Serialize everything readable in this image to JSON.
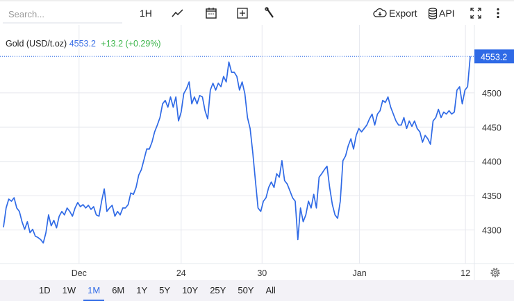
{
  "toolbar": {
    "search_placeholder": "Search...",
    "interval": "1H",
    "export_label": "Export",
    "api_label": "API",
    "icons": [
      "line-chart-icon",
      "calendar-icon",
      "add-indicator-icon",
      "wrench-icon",
      "cloud-download-icon",
      "database-icon",
      "fullscreen-icon",
      "more-vertical-icon"
    ]
  },
  "legend": {
    "name": "Gold (USD/t.oz)",
    "price": "4553.2",
    "change": "+13.2 (+0.29%)"
  },
  "ranges": [
    "1D",
    "1W",
    "1M",
    "6M",
    "1Y",
    "5Y",
    "10Y",
    "25Y",
    "50Y",
    "All"
  ],
  "active_range": "1M",
  "colors": {
    "line": "#2f6ae6",
    "change_positive": "#3bb54a",
    "grid": "#e6e8ee"
  },
  "chart_data": {
    "type": "line",
    "title": "",
    "ylim": [
      4251,
      4597
    ],
    "yticks": [
      4300,
      4350,
      4400,
      4450,
      4500
    ],
    "ytick_labels": [
      "4300",
      "4350",
      "4400",
      "4450",
      "4500"
    ],
    "last_price_label": "4553.2",
    "last_price": 4553.2,
    "xticks": [
      {
        "index": 28.5,
        "label": "Dec"
      },
      {
        "index": 67,
        "label": "24"
      },
      {
        "index": 97.5,
        "label": "30"
      },
      {
        "index": 134.25,
        "label": "Jan"
      },
      {
        "index": 174.2,
        "label": "12"
      }
    ],
    "grid": true,
    "values": [
      4304,
      4332,
      4345,
      4342,
      4347,
      4332,
      4327,
      4312,
      4301,
      4312,
      4296,
      4301,
      4291,
      4289,
      4286,
      4281,
      4296,
      4322,
      4306,
      4314,
      4303,
      4320,
      4327,
      4322,
      4332,
      4327,
      4320,
      4332,
      4340,
      4334,
      4337,
      4332,
      4336,
      4330,
      4334,
      4322,
      4320,
      4342,
      4360,
      4327,
      4332,
      4336,
      4320,
      4327,
      4322,
      4332,
      4332,
      4337,
      4354,
      4352,
      4362,
      4380,
      4388,
      4403,
      4418,
      4418,
      4428,
      4443,
      4453,
      4464,
      4484,
      4489,
      4479,
      4494,
      4479,
      4494,
      4459,
      4472,
      4499,
      4506,
      4516,
      4484,
      4494,
      4484,
      4496,
      4494,
      4474,
      4462,
      4504,
      4514,
      4504,
      4514,
      4509,
      4524,
      4516,
      4545,
      4530,
      4530,
      4524,
      4504,
      4516,
      4499,
      4464,
      4448,
      4413,
      4372,
      4332,
      4327,
      4342,
      4347,
      4362,
      4370,
      4362,
      4382,
      4377,
      4401,
      4372,
      4367,
      4357,
      4347,
      4342,
      4286,
      4332,
      4312,
      4322,
      4342,
      4332,
      4352,
      4332,
      4377,
      4382,
      4388,
      4393,
      4362,
      4337,
      4322,
      4317,
      4342,
      4401,
      4408,
      4423,
      4433,
      4418,
      4438,
      4448,
      4443,
      4448,
      4453,
      4462,
      4469,
      4453,
      4469,
      4474,
      4489,
      4486,
      4494,
      4479,
      4469,
      4459,
      4453,
      4453,
      4464,
      4448,
      4459,
      4451,
      4459,
      4448,
      4443,
      4428,
      4438,
      4433,
      4425,
      4459,
      4464,
      4476,
      4464,
      4472,
      4469,
      4474,
      4469,
      4472,
      4504,
      4509,
      4484,
      4504,
      4509,
      4553.2
    ]
  }
}
